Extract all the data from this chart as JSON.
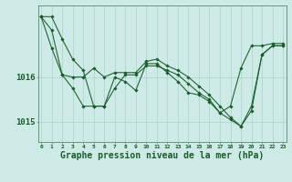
{
  "bg_color": "#ceeae6",
  "grid_color": "#a8d5ce",
  "line_color": "#1a5c2a",
  "marker_color": "#1a5c2a",
  "xlabel": "Graphe pression niveau de la mer (hPa)",
  "xlabel_fontsize": 7,
  "ylabel_fontsize": 6.5,
  "ytick_labels": [
    "1015",
    "1016"
  ],
  "ytick_values": [
    1015,
    1016
  ],
  "xtick_labels": [
    "0",
    "1",
    "2",
    "3",
    "4",
    "5",
    "6",
    "7",
    "8",
    "9",
    "10",
    "11",
    "12",
    "13",
    "14",
    "15",
    "16",
    "17",
    "18",
    "19",
    "20",
    "21",
    "22",
    "23"
  ],
  "ylim": [
    1014.55,
    1017.6
  ],
  "xlim": [
    -0.3,
    23.3
  ],
  "series": [
    [
      1017.35,
      1017.35,
      1016.85,
      1016.4,
      1016.15,
      1015.35,
      1015.35,
      1015.75,
      1016.05,
      1016.05,
      1016.25,
      1016.25,
      1016.15,
      1016.05,
      1015.85,
      1015.65,
      1015.5,
      1015.2,
      1015.05,
      1014.9,
      1015.35,
      1016.5,
      1016.7,
      1016.7
    ],
    [
      1017.35,
      1017.05,
      1016.05,
      1015.75,
      1015.35,
      1015.35,
      1015.35,
      1016.0,
      1015.9,
      1015.7,
      1016.3,
      1016.3,
      1016.1,
      1015.9,
      1015.65,
      1015.6,
      1015.45,
      1015.2,
      1015.35,
      1016.2,
      1016.7,
      1016.7,
      1016.75,
      1016.75
    ],
    [
      1017.35,
      1016.65,
      1016.05,
      1016.0,
      1016.0,
      1016.2,
      1016.0,
      1016.1,
      1016.1,
      1016.1,
      1016.35,
      1016.4,
      1016.25,
      1016.15,
      1016.0,
      1015.8,
      1015.6,
      1015.35,
      1015.1,
      1014.9,
      1015.25,
      1016.5,
      1016.7,
      1016.7
    ]
  ]
}
